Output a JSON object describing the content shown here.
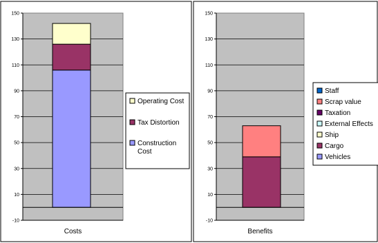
{
  "chart_data": [
    {
      "type": "bar",
      "stacked": true,
      "categories": [
        "Costs"
      ],
      "ylim": [
        -10,
        150
      ],
      "yticks": [
        "150",
        "130",
        "110",
        "90",
        "70",
        "50",
        "30",
        "10",
        "-10"
      ],
      "grid": true,
      "legend_position": "right",
      "series": [
        {
          "name": "Construction Cost",
          "values": [
            106
          ],
          "color": "#9999ff",
          "legend": [
            "Construction",
            "Cost"
          ]
        },
        {
          "name": "Tax Distortion",
          "values": [
            20
          ],
          "color": "#993366",
          "legend": [
            "Tax Distortion"
          ]
        },
        {
          "name": "Operating Cost",
          "values": [
            16
          ],
          "color": "#ffffcc",
          "legend": [
            "Operating Cost"
          ]
        }
      ]
    },
    {
      "type": "bar",
      "stacked": true,
      "categories": [
        "Benefits"
      ],
      "ylim": [
        -10,
        150
      ],
      "yticks": [
        "150",
        "130",
        "110",
        "90",
        "70",
        "50",
        "30",
        "10",
        "-10"
      ],
      "grid": true,
      "legend_position": "right",
      "series": [
        {
          "name": "Vehicles",
          "values": [
            0
          ],
          "color": "#9999ff",
          "legend": [
            "Vehicles"
          ]
        },
        {
          "name": "Cargo",
          "values": [
            39
          ],
          "color": "#993366",
          "legend": [
            "Cargo"
          ]
        },
        {
          "name": "Ship",
          "values": [
            0
          ],
          "color": "#ffffcc",
          "legend": [
            "Ship"
          ]
        },
        {
          "name": "External Effects",
          "values": [
            0
          ],
          "color": "#ccffff",
          "legend": [
            "External Effects"
          ]
        },
        {
          "name": "Taxation",
          "values": [
            0
          ],
          "color": "#660066",
          "legend": [
            "Taxation"
          ]
        },
        {
          "name": "Scrap value",
          "values": [
            24
          ],
          "color": "#ff8080",
          "legend": [
            "Scrap value"
          ]
        },
        {
          "name": "Staff",
          "values": [
            0
          ],
          "color": "#0066cc",
          "legend": [
            "Staff"
          ]
        }
      ]
    }
  ],
  "colors": {
    "plot_background": "#c0c0c0",
    "gridline": "#000000"
  }
}
